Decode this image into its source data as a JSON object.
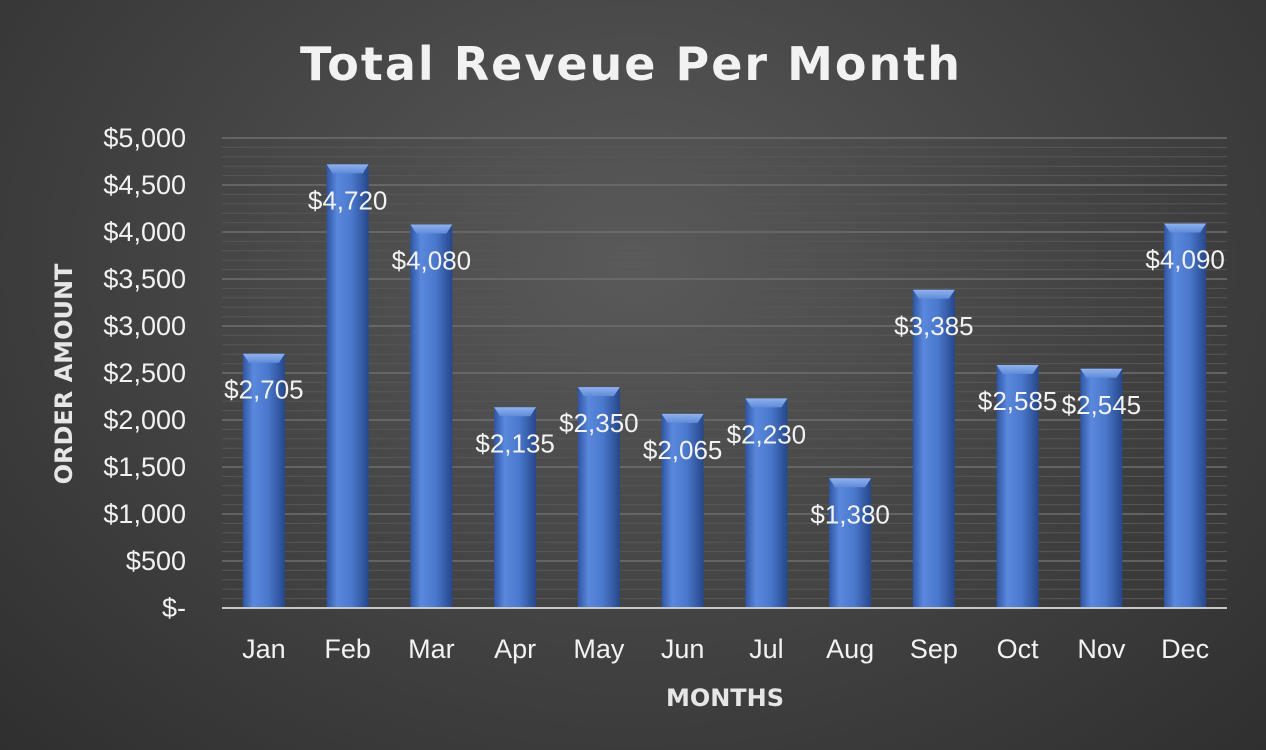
{
  "chart_data": {
    "type": "bar",
    "title": "Total Reveue Per Month",
    "xlabel": "MONTHS",
    "ylabel": "ORDER AMOUNT",
    "categories": [
      "Jan",
      "Feb",
      "Mar",
      "Apr",
      "May",
      "Jun",
      "Jul",
      "Aug",
      "Sep",
      "Oct",
      "Nov",
      "Dec"
    ],
    "values": [
      2705,
      4720,
      4080,
      2135,
      2350,
      2065,
      2230,
      1380,
      3385,
      2585,
      2545,
      4090
    ],
    "data_labels": [
      "$2,705",
      "$4,720",
      "$4,080",
      "$2,135",
      "$2,350",
      "$2,065",
      "$2,230",
      "$1,380",
      "$3,385",
      "$2,585",
      "$2,545",
      "$4,090"
    ],
    "ylim": [
      0,
      5000
    ],
    "yticks": [
      0,
      500,
      1000,
      1500,
      2000,
      2500,
      3000,
      3500,
      4000,
      4500,
      5000
    ],
    "ytick_labels": [
      "$-",
      "$500",
      "$1,000",
      "$1,500",
      "$2,000",
      "$2,500",
      "$3,000",
      "$3,500",
      "$4,000",
      "$4,500",
      "$5,000"
    ],
    "grid": true,
    "legend": "none",
    "colors": {
      "bar": "#4472c4",
      "background": "#404040",
      "text": "#f2f2f2",
      "gridline": "#6a6a6a"
    }
  }
}
